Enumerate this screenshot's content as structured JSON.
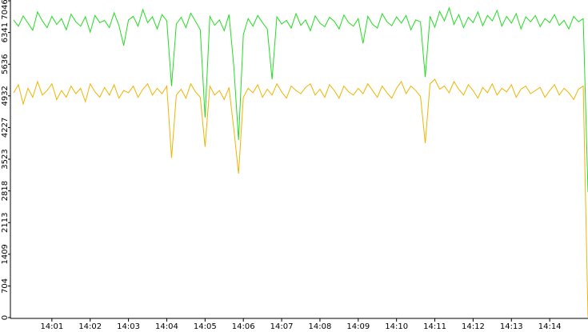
{
  "chart_data": {
    "type": "line",
    "categories": [
      null,
      null,
      null,
      null,
      null,
      null,
      null,
      null,
      "14:01",
      null,
      null,
      null,
      null,
      null,
      null,
      null,
      "14:02",
      null,
      null,
      null,
      null,
      null,
      null,
      null,
      "14:03",
      null,
      null,
      null,
      null,
      null,
      null,
      null,
      "14:04",
      null,
      null,
      null,
      null,
      null,
      null,
      null,
      "14:05",
      null,
      null,
      null,
      null,
      null,
      null,
      null,
      "14:06",
      null,
      null,
      null,
      null,
      null,
      null,
      null,
      "14:07",
      null,
      null,
      null,
      null,
      null,
      null,
      null,
      "14:08",
      null,
      null,
      null,
      null,
      null,
      null,
      null,
      "14:09",
      null,
      null,
      null,
      null,
      null,
      null,
      null,
      "14:10",
      null,
      null,
      null,
      null,
      null,
      null,
      null,
      "14:11",
      null,
      null,
      null,
      null,
      null,
      null,
      null,
      "14:12",
      null,
      null,
      null,
      null,
      null,
      null,
      null,
      "14:13",
      null,
      null,
      null,
      null,
      null,
      null,
      null,
      "14:14",
      null,
      null,
      null,
      null,
      null,
      null,
      null,
      null
    ],
    "series": [
      {
        "color": "#22dd22",
        "values": [
          6620,
          6480,
          6710,
          6550,
          6390,
          6800,
          6600,
          6450,
          6700,
          6520,
          6650,
          6400,
          6750,
          6580,
          6480,
          6690,
          6350,
          6720,
          6560,
          6610,
          6450,
          6780,
          6500,
          6050,
          6620,
          6700,
          6480,
          6850,
          6560,
          6690,
          6420,
          6740,
          6600,
          5150,
          6530,
          6680,
          6450,
          6770,
          6590,
          6400,
          4450,
          6700,
          6500,
          6620,
          6380,
          6740,
          5600,
          3950,
          6300,
          6650,
          6480,
          6720,
          6560,
          6420,
          5300,
          6690,
          6530,
          6610,
          6440,
          6760,
          6500,
          6620,
          6380,
          6710,
          6550,
          6470,
          6680,
          6590,
          6420,
          6730,
          6560,
          6480,
          6650,
          6100,
          6700,
          6520,
          6440,
          6760,
          6580,
          6490,
          6690,
          6550,
          6720,
          6400,
          6620,
          6580,
          5350,
          6700,
          6460,
          6810,
          6600,
          6890,
          6520,
          6740,
          6450,
          6680,
          6560,
          6800,
          6490,
          6720,
          6600,
          6830,
          6480,
          6700,
          6550,
          6760,
          6420,
          6690,
          6580,
          6720,
          6470,
          6650,
          6560,
          6740,
          6500,
          6610,
          6420,
          6700,
          6580,
          6650,
          2790
        ]
      },
      {
        "color": "#f0b400",
        "values": [
          5000,
          5180,
          4750,
          5100,
          4900,
          5250,
          4950,
          5050,
          5200,
          4850,
          5050,
          4900,
          5150,
          4980,
          5100,
          4800,
          5200,
          5020,
          4900,
          5120,
          4950,
          5180,
          4880,
          5050,
          5000,
          5150,
          4900,
          5080,
          5200,
          4950,
          5100,
          4980,
          5150,
          3550,
          4950,
          5080,
          4880,
          5200,
          5020,
          4900,
          3800,
          5150,
          4950,
          5050,
          4850,
          5120,
          4200,
          3200,
          4900,
          5100,
          5000,
          5180,
          4900,
          5080,
          4950,
          5200,
          5020,
          4880,
          5150,
          5050,
          4980,
          5120,
          5200,
          4950,
          5080,
          4900,
          5180,
          5050,
          4880,
          5150,
          5020,
          4950,
          5100,
          4980,
          5200,
          5050,
          4900,
          5150,
          5000,
          4880,
          5100,
          5250,
          4980,
          5150,
          5050,
          4920,
          3880,
          5200,
          5300,
          5080,
          5150,
          5000,
          5250,
          5080,
          4950,
          5180,
          5050,
          4880,
          5120,
          5000,
          5200,
          4950,
          5100,
          5020,
          5180,
          4900,
          5080,
          5150,
          4980,
          5050,
          5120,
          4900,
          5050,
          5180,
          4950,
          5100,
          5000,
          4850,
          5080,
          5150,
          0
        ]
      }
    ],
    "ylim": [
      0,
      7046
    ],
    "yticks": [
      0,
      704,
      1409,
      2113,
      2818,
      3523,
      4227,
      4932,
      5636,
      6341,
      7046
    ]
  }
}
